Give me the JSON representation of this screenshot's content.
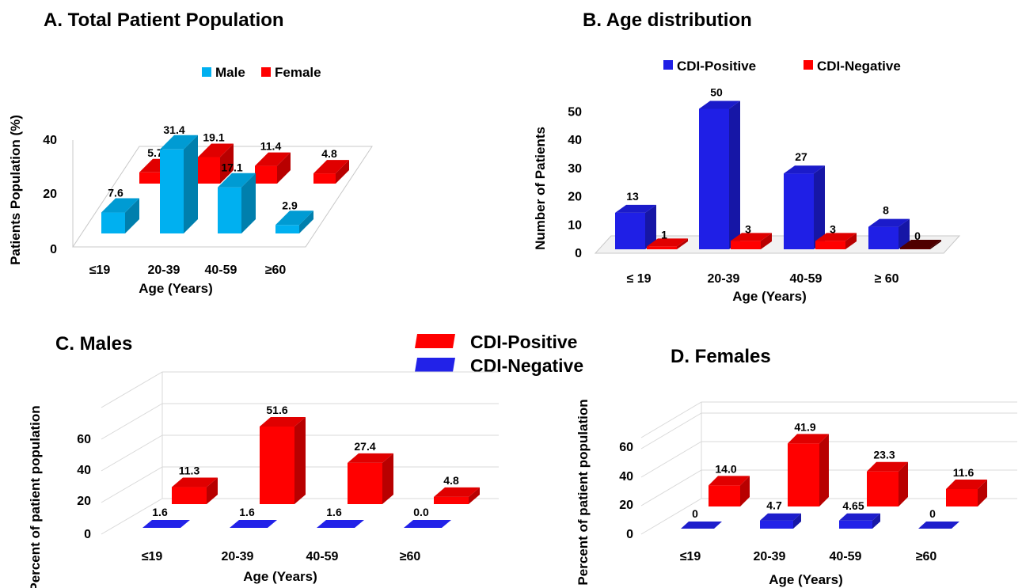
{
  "colors": {
    "male": "#00b0f0",
    "female": "#ff0000",
    "cdi_positive_b": "#1f1fe6",
    "cdi_negative_b": "#ff0000",
    "cdi_positive_cd": "#ff0000",
    "cdi_negative_cd": "#2222e8"
  },
  "shared_legend": {
    "items": [
      {
        "label": "CDI-Positive",
        "color": "#ff0000"
      },
      {
        "label": "CDI-Negative",
        "color": "#2222e8"
      }
    ]
  },
  "chart_data": [
    {
      "id": "A",
      "type": "bar",
      "title": "A. Total Patient  Population",
      "xlabel": "Age (Years)",
      "ylabel": "Patients Population (%)",
      "categories": [
        "≤19",
        "20-39",
        "40-59",
        "≥60"
      ],
      "yticks": [
        "0",
        "20",
        "40"
      ],
      "ylim": [
        0,
        40
      ],
      "legend": "top",
      "series": [
        {
          "name": "Male",
          "values": [
            7.6,
            31.4,
            17.1,
            2.9
          ],
          "labels": [
            "7.6",
            "31.4",
            "17.1",
            "2.9"
          ]
        },
        {
          "name": "Female",
          "values": [
            5.7,
            19.1,
            11.4,
            4.8
          ],
          "labels": [
            "5.7",
            "19.1",
            "11.4",
            "4.8"
          ]
        }
      ]
    },
    {
      "id": "B",
      "type": "bar",
      "title": "B. Age distribution",
      "xlabel": "Age (Years)",
      "ylabel": "Number of Patients",
      "categories": [
        "≤ 19",
        "20-39",
        "40-59",
        "≥ 60"
      ],
      "yticks": [
        "0",
        "10",
        "20",
        "30",
        "40",
        "50"
      ],
      "ylim": [
        0,
        50
      ],
      "legend": "top",
      "series": [
        {
          "name": "CDI-Positive",
          "values": [
            13,
            50,
            27,
            8
          ],
          "labels": [
            "13",
            "50",
            "27",
            "8"
          ]
        },
        {
          "name": "CDI-Negative",
          "values": [
            1,
            3,
            3,
            0
          ],
          "labels": [
            "1",
            "3",
            "3",
            "0"
          ]
        }
      ]
    },
    {
      "id": "C",
      "type": "bar",
      "title": "C. Males",
      "xlabel": "Age (Years)",
      "ylabel": "Percent of patient population",
      "categories": [
        "≤19",
        "20-39",
        "40-59",
        "≥60"
      ],
      "yticks": [
        "0",
        "20",
        "40",
        "60"
      ],
      "ylim": [
        0,
        70
      ],
      "legend": "shared",
      "series": [
        {
          "name": "CDI-Positive",
          "values": [
            11.3,
            51.6,
            27.4,
            4.8
          ],
          "labels": [
            "11.3",
            "51.6",
            "27.4",
            "4.8"
          ]
        },
        {
          "name": "CDI-Negative",
          "values": [
            1.6,
            1.6,
            1.6,
            0.0
          ],
          "labels": [
            "1.6",
            "1.6",
            "1.6",
            "0.0"
          ]
        }
      ]
    },
    {
      "id": "D",
      "type": "bar",
      "title": "D. Females",
      "xlabel": "Age (Years)",
      "ylabel": "Percent of patient population",
      "categories": [
        "≤19",
        "20-39",
        "40-59",
        "≥60"
      ],
      "yticks": [
        "0",
        "20",
        "40",
        "60"
      ],
      "ylim": [
        0,
        70
      ],
      "legend": "shared",
      "series": [
        {
          "name": "CDI-Positive",
          "values": [
            14.0,
            41.9,
            23.3,
            11.6
          ],
          "labels": [
            "14.0",
            "41.9",
            "23.3",
            "11.6"
          ]
        },
        {
          "name": "CDI-Negative",
          "values": [
            0,
            4.7,
            4.65,
            0
          ],
          "labels": [
            "0",
            "4.7",
            "4.65",
            "0"
          ]
        }
      ]
    }
  ]
}
